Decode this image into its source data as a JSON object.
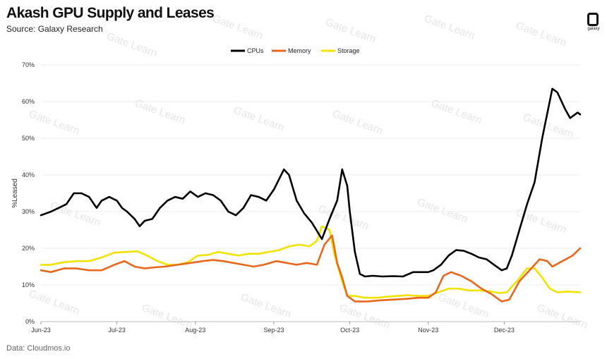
{
  "header": {
    "title": "Akash GPU Supply and Leases",
    "subtitle": "Source: Galaxy Research",
    "logo_text": "galaxy"
  },
  "footer": {
    "text": "Data: Cloudmos.io"
  },
  "watermark": "Gate Learn",
  "chart_data": {
    "type": "line",
    "title": "Akash GPU Supply and Leases",
    "xlabel": "",
    "ylabel": "%Leased",
    "x_tick_labels": [
      "Jun-23",
      "Jul-23",
      "Aug-23",
      "Sep-23",
      "Oct-23",
      "Nov-23",
      "Dec-23"
    ],
    "x_ticks": [
      "2023-06-01",
      "2023-07-01",
      "2023-08-01",
      "2023-09-01",
      "2023-10-01",
      "2023-11-01",
      "2023-12-01"
    ],
    "xlim": [
      "2023-06-01",
      "2023-12-31"
    ],
    "y_tick_labels": [
      "0%",
      "10%",
      "20%",
      "30%",
      "40%",
      "50%",
      "60%",
      "70%"
    ],
    "ylim": [
      0,
      70
    ],
    "grid": true,
    "legend_position": "top-center",
    "series": [
      {
        "name": "CPUs",
        "color": "#000000",
        "points": [
          [
            "2023-06-01",
            29
          ],
          [
            "2023-06-05",
            30
          ],
          [
            "2023-06-08",
            31
          ],
          [
            "2023-06-11",
            32
          ],
          [
            "2023-06-14",
            35
          ],
          [
            "2023-06-17",
            35
          ],
          [
            "2023-06-20",
            34
          ],
          [
            "2023-06-23",
            31
          ],
          [
            "2023-06-25",
            33
          ],
          [
            "2023-06-28",
            34
          ],
          [
            "2023-07-01",
            33
          ],
          [
            "2023-07-03",
            31
          ],
          [
            "2023-07-05",
            30
          ],
          [
            "2023-07-08",
            28
          ],
          [
            "2023-07-10",
            26
          ],
          [
            "2023-07-12",
            27.5
          ],
          [
            "2023-07-15",
            28
          ],
          [
            "2023-07-18",
            31
          ],
          [
            "2023-07-21",
            33
          ],
          [
            "2023-07-24",
            34
          ],
          [
            "2023-07-27",
            33.5
          ],
          [
            "2023-07-30",
            35.5
          ],
          [
            "2023-08-02",
            34
          ],
          [
            "2023-08-05",
            35
          ],
          [
            "2023-08-08",
            34.5
          ],
          [
            "2023-08-11",
            33
          ],
          [
            "2023-08-14",
            30
          ],
          [
            "2023-08-17",
            29
          ],
          [
            "2023-08-20",
            31
          ],
          [
            "2023-08-23",
            34.5
          ],
          [
            "2023-08-26",
            34
          ],
          [
            "2023-08-29",
            33
          ],
          [
            "2023-09-01",
            36
          ],
          [
            "2023-09-05",
            41.5
          ],
          [
            "2023-09-07",
            40
          ],
          [
            "2023-09-10",
            33
          ],
          [
            "2023-09-13",
            29.5
          ],
          [
            "2023-09-16",
            27
          ],
          [
            "2023-09-20",
            22.5
          ],
          [
            "2023-09-23",
            28
          ],
          [
            "2023-09-26",
            33
          ],
          [
            "2023-09-28",
            41.5
          ],
          [
            "2023-09-30",
            37
          ],
          [
            "2023-10-01",
            30
          ],
          [
            "2023-10-03",
            19
          ],
          [
            "2023-10-05",
            13
          ],
          [
            "2023-10-07",
            12.3
          ],
          [
            "2023-10-10",
            12.5
          ],
          [
            "2023-10-14",
            12.3
          ],
          [
            "2023-10-18",
            12.4
          ],
          [
            "2023-10-22",
            12.3
          ],
          [
            "2023-10-26",
            13.5
          ],
          [
            "2023-10-30",
            13.5
          ],
          [
            "2023-11-01",
            13.5
          ],
          [
            "2023-11-03",
            14
          ],
          [
            "2023-11-06",
            15.5
          ],
          [
            "2023-11-09",
            18
          ],
          [
            "2023-11-12",
            19.5
          ],
          [
            "2023-11-15",
            19.3
          ],
          [
            "2023-11-18",
            18.5
          ],
          [
            "2023-11-21",
            17.5
          ],
          [
            "2023-11-24",
            17
          ],
          [
            "2023-11-27",
            15.5
          ],
          [
            "2023-11-30",
            14
          ],
          [
            "2023-12-02",
            14.5
          ],
          [
            "2023-12-04",
            18
          ],
          [
            "2023-12-07",
            25
          ],
          [
            "2023-12-10",
            32
          ],
          [
            "2023-12-13",
            38
          ],
          [
            "2023-12-16",
            50
          ],
          [
            "2023-12-20",
            63.5
          ],
          [
            "2023-12-22",
            62.5
          ],
          [
            "2023-12-25",
            58
          ],
          [
            "2023-12-27",
            55.5
          ],
          [
            "2023-12-30",
            57
          ],
          [
            "2023-12-31",
            56.5
          ]
        ]
      },
      {
        "name": "Memory",
        "color": "#e8671c",
        "points": [
          [
            "2023-06-01",
            14
          ],
          [
            "2023-06-05",
            13.5
          ],
          [
            "2023-06-10",
            14.5
          ],
          [
            "2023-06-15",
            14.5
          ],
          [
            "2023-06-20",
            14
          ],
          [
            "2023-06-25",
            14
          ],
          [
            "2023-06-30",
            15.5
          ],
          [
            "2023-07-04",
            16.5
          ],
          [
            "2023-07-08",
            15
          ],
          [
            "2023-07-12",
            14.5
          ],
          [
            "2023-07-16",
            14.8
          ],
          [
            "2023-07-20",
            15
          ],
          [
            "2023-07-25",
            15.5
          ],
          [
            "2023-07-30",
            16
          ],
          [
            "2023-08-04",
            16.5
          ],
          [
            "2023-08-08",
            16.8
          ],
          [
            "2023-08-12",
            16.5
          ],
          [
            "2023-08-16",
            16
          ],
          [
            "2023-08-20",
            15.5
          ],
          [
            "2023-08-24",
            15
          ],
          [
            "2023-08-28",
            15.5
          ],
          [
            "2023-09-02",
            16.5
          ],
          [
            "2023-09-06",
            16
          ],
          [
            "2023-09-10",
            15.5
          ],
          [
            "2023-09-14",
            16
          ],
          [
            "2023-09-18",
            15.5
          ],
          [
            "2023-09-21",
            21
          ],
          [
            "2023-09-24",
            23.5
          ],
          [
            "2023-09-26",
            16
          ],
          [
            "2023-09-28",
            12
          ],
          [
            "2023-09-30",
            7
          ],
          [
            "2023-10-03",
            5.5
          ],
          [
            "2023-10-08",
            5.5
          ],
          [
            "2023-10-13",
            5.8
          ],
          [
            "2023-10-18",
            6
          ],
          [
            "2023-10-23",
            6.2
          ],
          [
            "2023-10-28",
            6.5
          ],
          [
            "2023-11-01",
            6.5
          ],
          [
            "2023-11-04",
            8
          ],
          [
            "2023-11-07",
            12.5
          ],
          [
            "2023-11-10",
            13.5
          ],
          [
            "2023-11-14",
            12.5
          ],
          [
            "2023-11-18",
            11
          ],
          [
            "2023-11-22",
            9
          ],
          [
            "2023-11-26",
            7.5
          ],
          [
            "2023-11-30",
            5.5
          ],
          [
            "2023-12-03",
            6
          ],
          [
            "2023-12-07",
            11
          ],
          [
            "2023-12-11",
            14
          ],
          [
            "2023-12-15",
            17
          ],
          [
            "2023-12-18",
            16.5
          ],
          [
            "2023-12-20",
            15
          ],
          [
            "2023-12-24",
            16.5
          ],
          [
            "2023-12-28",
            18
          ],
          [
            "2023-12-31",
            20
          ]
        ]
      },
      {
        "name": "Storage",
        "color": "#f2e200",
        "points": [
          [
            "2023-06-01",
            15.5
          ],
          [
            "2023-06-05",
            15.5
          ],
          [
            "2023-06-10",
            16.2
          ],
          [
            "2023-06-15",
            16.5
          ],
          [
            "2023-06-20",
            16.5
          ],
          [
            "2023-06-25",
            17.5
          ],
          [
            "2023-06-30",
            18.8
          ],
          [
            "2023-07-05",
            19
          ],
          [
            "2023-07-09",
            19.2
          ],
          [
            "2023-07-13",
            18
          ],
          [
            "2023-07-17",
            16.5
          ],
          [
            "2023-07-21",
            15.5
          ],
          [
            "2023-07-25",
            15.5
          ],
          [
            "2023-07-29",
            16.2
          ],
          [
            "2023-08-02",
            18
          ],
          [
            "2023-08-06",
            18.2
          ],
          [
            "2023-08-10",
            19
          ],
          [
            "2023-08-14",
            18.5
          ],
          [
            "2023-08-18",
            18
          ],
          [
            "2023-08-22",
            18.5
          ],
          [
            "2023-08-26",
            18.5
          ],
          [
            "2023-08-30",
            19
          ],
          [
            "2023-09-03",
            19.5
          ],
          [
            "2023-09-07",
            20.5
          ],
          [
            "2023-09-11",
            21
          ],
          [
            "2023-09-15",
            20.5
          ],
          [
            "2023-09-18",
            22
          ],
          [
            "2023-09-20",
            26
          ],
          [
            "2023-09-23",
            25
          ],
          [
            "2023-09-25",
            18
          ],
          [
            "2023-09-28",
            11
          ],
          [
            "2023-09-30",
            7
          ],
          [
            "2023-10-03",
            7
          ],
          [
            "2023-10-07",
            6.5
          ],
          [
            "2023-10-12",
            6.5
          ],
          [
            "2023-10-16",
            6.8
          ],
          [
            "2023-10-20",
            7
          ],
          [
            "2023-10-24",
            7.2
          ],
          [
            "2023-10-28",
            7
          ],
          [
            "2023-11-01",
            7
          ],
          [
            "2023-11-05",
            8
          ],
          [
            "2023-11-09",
            9
          ],
          [
            "2023-11-13",
            9
          ],
          [
            "2023-11-17",
            8.5
          ],
          [
            "2023-11-21",
            8.5
          ],
          [
            "2023-11-25",
            8.3
          ],
          [
            "2023-11-29",
            7.8
          ],
          [
            "2023-12-02",
            8
          ],
          [
            "2023-12-06",
            11
          ],
          [
            "2023-12-10",
            14.5
          ],
          [
            "2023-12-13",
            14.5
          ],
          [
            "2023-12-16",
            12
          ],
          [
            "2023-12-19",
            9
          ],
          [
            "2023-12-22",
            8
          ],
          [
            "2023-12-26",
            8.2
          ],
          [
            "2023-12-31",
            8
          ]
        ]
      }
    ]
  }
}
